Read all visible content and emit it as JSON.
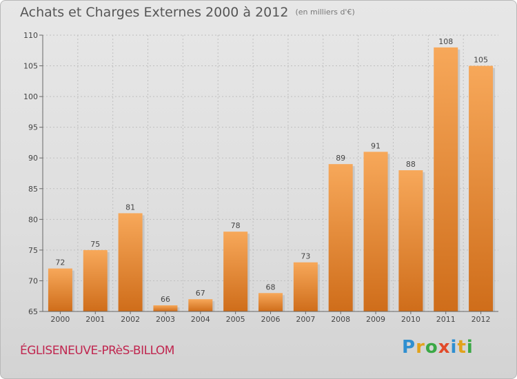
{
  "title": "Achats et Charges Externes 2000 à 2012",
  "unit": "(en milliers d'€)",
  "commune": "ÉGLISENEUVE-PRèS-BILLOM",
  "logo": {
    "letters": [
      "P",
      "r",
      "o",
      "x",
      "i",
      "t",
      "i"
    ],
    "colors": [
      "#2f8fd0",
      "#e2a21b",
      "#3aa845",
      "#e24a2a",
      "#2f8fd0",
      "#e2a21b",
      "#3aa845"
    ]
  },
  "chart_data": {
    "type": "bar",
    "categories": [
      "2000",
      "2001",
      "2002",
      "2003",
      "2004",
      "2005",
      "2006",
      "2007",
      "2008",
      "2009",
      "2010",
      "2011",
      "2012"
    ],
    "values": [
      72,
      75,
      81,
      66,
      67,
      78,
      68,
      73,
      89,
      91,
      88,
      108,
      105
    ],
    "ylim": [
      65,
      110
    ],
    "yticks": [
      65,
      70,
      75,
      80,
      85,
      90,
      95,
      100,
      105,
      110
    ],
    "grid": true,
    "bar_color": "#f0923a"
  }
}
